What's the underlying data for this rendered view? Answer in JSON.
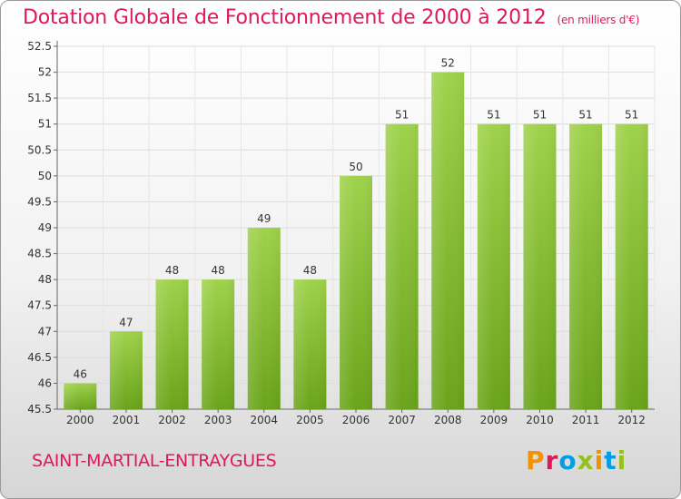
{
  "chart_data": {
    "type": "bar",
    "title": "Dotation Globale de Fonctionnement de 2000 à 2012",
    "unit": "(en milliers d'€)",
    "categories": [
      "2000",
      "2001",
      "2002",
      "2003",
      "2004",
      "2005",
      "2006",
      "2007",
      "2008",
      "2009",
      "2010",
      "2011",
      "2012"
    ],
    "values": [
      46,
      47,
      48,
      48,
      49,
      48,
      50,
      51,
      52,
      51,
      51,
      51,
      51
    ],
    "ylim": [
      45.5,
      52.5
    ],
    "yticks": [
      "45.5",
      "46",
      "46.5",
      "47",
      "47.5",
      "48",
      "48.5",
      "49",
      "49.5",
      "50",
      "50.5",
      "51",
      "51.5",
      "52",
      "52.5"
    ],
    "grid": true,
    "bar_color": "#8cc63f"
  },
  "footer": {
    "commune": "SAINT-MARTIAL-ENTRAYGUES",
    "logo_text": "Proxiti",
    "logo_colors": [
      "#f39200",
      "#e0185b",
      "#009fe3",
      "#95c11f",
      "#f39200",
      "#009fe3",
      "#95c11f"
    ]
  }
}
